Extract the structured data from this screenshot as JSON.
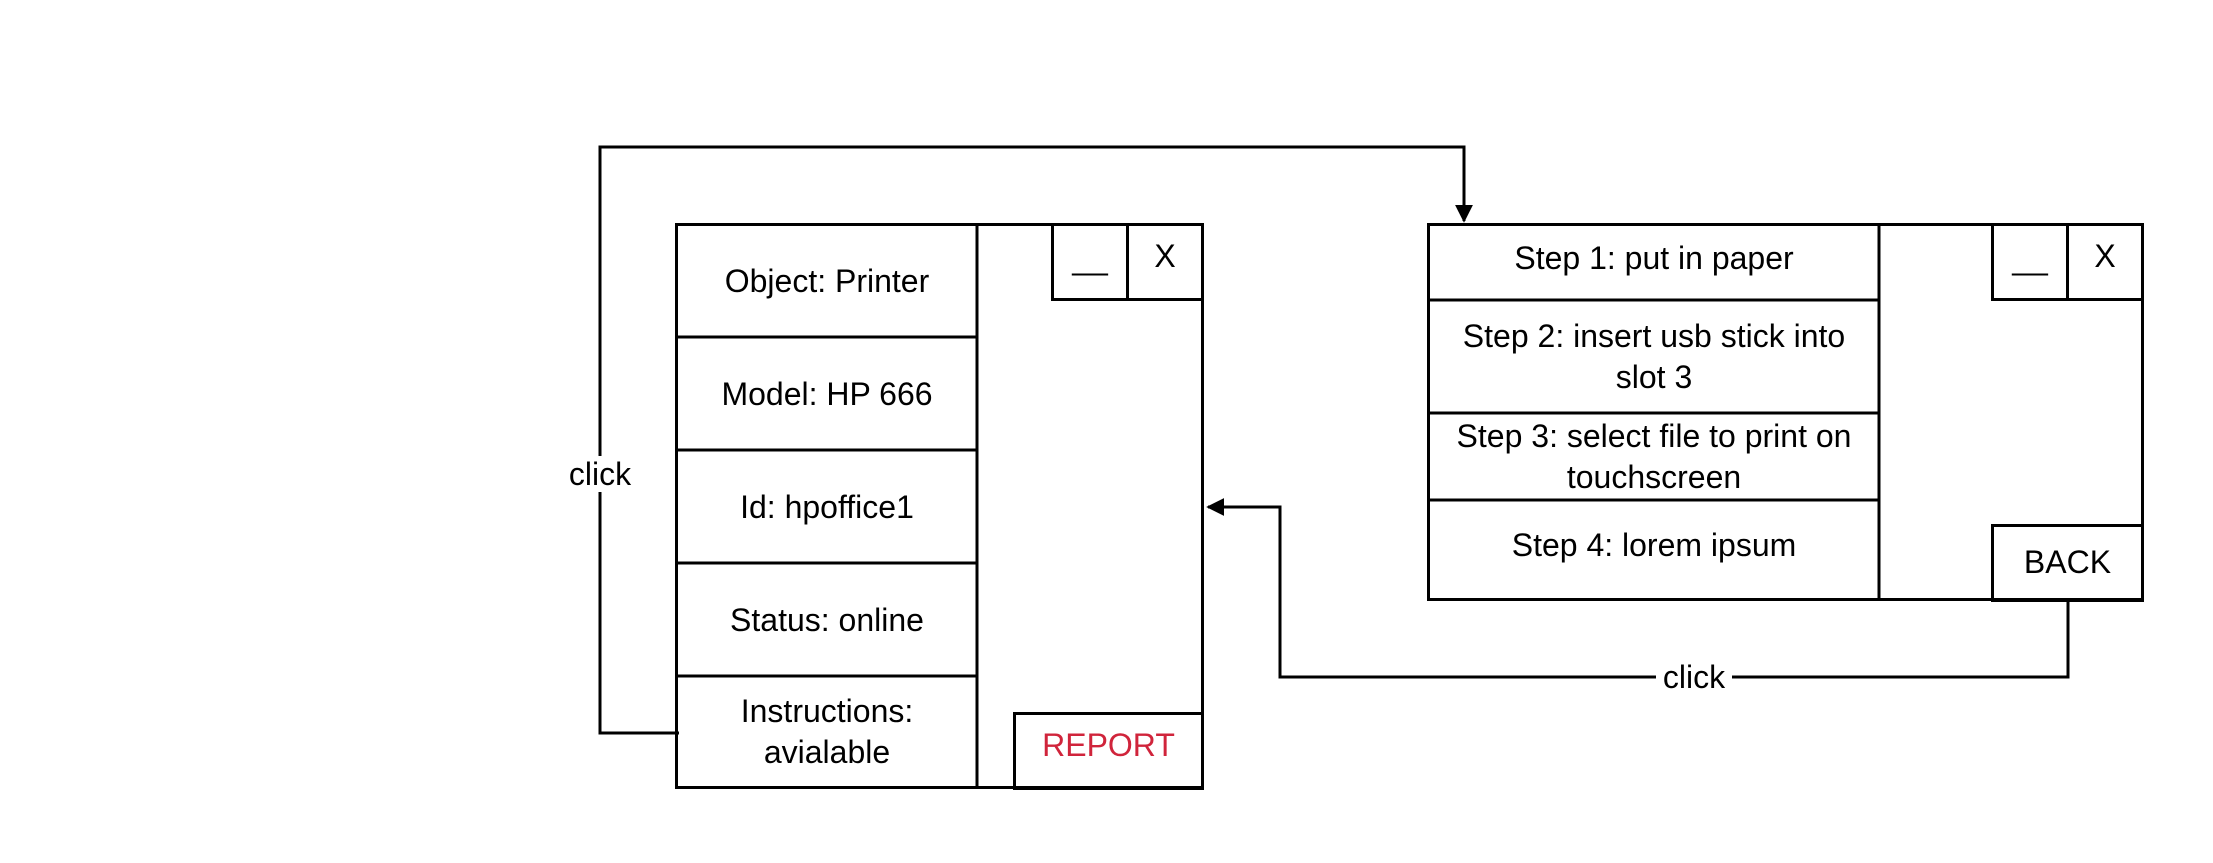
{
  "colors": {
    "stroke": "#000000",
    "background": "#ffffff",
    "report": "#d0243b"
  },
  "left_window": {
    "rows": [
      "Object: Printer",
      "Model: HP 666",
      "Id: hpoffice1",
      "Status: online",
      "Instructions: avialable"
    ],
    "minimize_label": "__",
    "close_label": "X",
    "report_label": "REPORT"
  },
  "right_window": {
    "steps": [
      "Step 1: put in paper",
      "Step 2: insert usb stick into slot 3",
      "Step 3: select file to print on touchscreen",
      "Step 4: lorem ipsum"
    ],
    "minimize_label": "__",
    "close_label": "X",
    "back_label": "BACK"
  },
  "connectors": {
    "instructions_to_steps_label": "click",
    "back_to_details_label": "click"
  }
}
